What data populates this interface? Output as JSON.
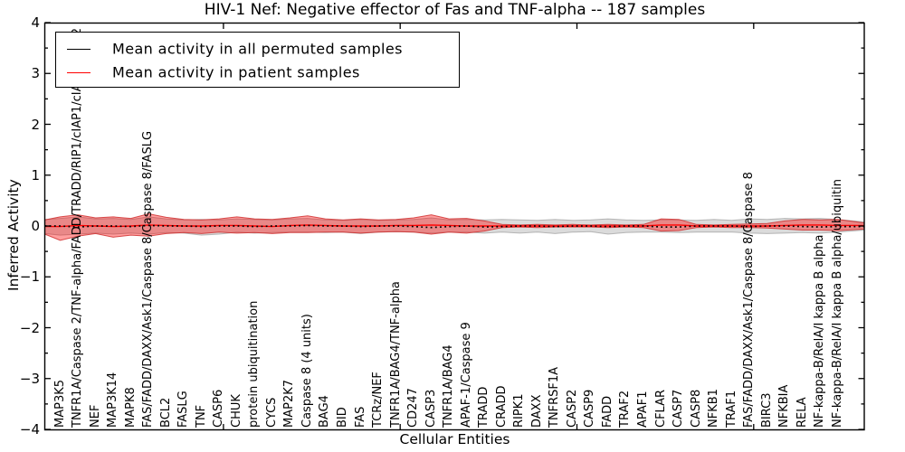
{
  "figure": {
    "title": "HIV-1 Nef: Negative effector of Fas and TNF-alpha -- 187 samples",
    "xlabel": "Cellular Entities",
    "ylabel": "Inferred Activity",
    "background_color": "#ffffff",
    "spine_color": "#000000"
  },
  "legend": {
    "entries": [
      {
        "label": "Mean activity in all permuted samples",
        "color": "#000000"
      },
      {
        "label": "Mean activity in patient samples",
        "color": "#ff0000"
      }
    ]
  },
  "chart_data": {
    "type": "line",
    "title": "HIV-1 Nef: Negative effector of Fas and TNF-alpha -- 187 samples",
    "xlabel": "Cellular Entities",
    "ylabel": "Inferred Activity",
    "ylim": [
      -4,
      4
    ],
    "yticks": [
      4,
      3,
      2,
      1,
      0,
      -1,
      -2,
      -3,
      -4
    ],
    "ytick_labels": [
      "4",
      "3",
      "2",
      "1",
      "0",
      "−1",
      "−2",
      "−3",
      "−4"
    ],
    "xticks": [
      10,
      20,
      30,
      40
    ],
    "grid": false,
    "legend_position": "upper left",
    "sample_count_in_title": 187,
    "categories": [
      "MAP3K5",
      "TNFR1A/Caspase 2/TNF-alpha/FADD/TRADD/RIP1/cIAP1/cIAP2/TRAF2",
      "NEF",
      "MAP3K14",
      "MAPK8",
      "FAS/FADD/DAXX/Ask1/Caspase 8/Caspase 8/FASLG",
      "BCL2",
      "FASLG",
      "TNF",
      "CASP6",
      "CHUK",
      "protein ubiquitination",
      "CYCS",
      "MAP2K7",
      "Caspase 8 (4 units)",
      "BAG4",
      "BID",
      "FAS",
      "TCRz/NEF",
      "TNFR1A/BAG4/TNF-alpha",
      "CD247",
      "CASP3",
      "TNFR1A/BAG4",
      "APAF-1/Caspase 9",
      "TRADD",
      "CRADD",
      "RIPK1",
      "DAXX",
      "TNFRSF1A",
      "CASP2",
      "CASP9",
      "FADD",
      "TRAF2",
      "APAF1",
      "CFLAR",
      "CASP7",
      "CASP8",
      "NFKB1",
      "TRAF1",
      "FAS/FADD/DAXX/Ask1/Caspase 8/Caspase 8",
      "BIRC3",
      "NFKBIA",
      "RELA",
      "NF-kappa-B/RelA/I kappa B alpha",
      "NF-kappa-B/RelA/I kappa B alpha/ubiquitin"
    ],
    "series": [
      {
        "name": "Mean activity in all permuted samples",
        "color": "#000000",
        "linestyle": "dotted",
        "values": [
          0,
          -0.02,
          0,
          0,
          -0.01,
          0.01,
          0,
          0,
          -0.01,
          0,
          0,
          -0.01,
          0,
          0,
          0.01,
          0,
          0,
          -0.01,
          0,
          0,
          -0.01,
          -0.03,
          -0.01,
          0,
          -0.02,
          -0.01,
          0,
          0,
          -0.01,
          0,
          0,
          -0.01,
          0,
          0,
          -0.02,
          -0.02,
          0,
          0,
          0,
          -0.01,
          0,
          0,
          -0.01,
          -0.02,
          -0.01
        ]
      },
      {
        "name": "Mean activity in patient samples",
        "color": "#ff0000",
        "linestyle": "solid",
        "values": [
          -0.01,
          0.01,
          0,
          -0.01,
          0,
          0.02,
          0.01,
          0,
          0,
          0.01,
          0.01,
          0,
          -0.01,
          0.01,
          0.02,
          0.01,
          0,
          0,
          0,
          0.01,
          0.01,
          0.02,
          0.01,
          0,
          0,
          0,
          0,
          0,
          0,
          0,
          0,
          0,
          0,
          0,
          0.02,
          0.02,
          0,
          0,
          0,
          0,
          0,
          0.01,
          0.02,
          0.02,
          0.01
        ]
      }
    ],
    "bands": [
      {
        "name": "Permuted samples range",
        "fill": "rgba(125,125,125,0.28)",
        "edge": "rgba(125,125,125,0.5)",
        "upper": [
          0.15,
          0.18,
          0.14,
          0.15,
          0.13,
          0.18,
          0.14,
          0.12,
          0.13,
          0.12,
          0.14,
          0.13,
          0.12,
          0.14,
          0.15,
          0.12,
          0.11,
          0.13,
          0.11,
          0.12,
          0.13,
          0.16,
          0.12,
          0.13,
          0.12,
          0.13,
          0.12,
          0.11,
          0.13,
          0.11,
          0.12,
          0.14,
          0.12,
          0.11,
          0.12,
          0.12,
          0.11,
          0.13,
          0.11,
          0.14,
          0.13,
          0.15,
          0.14,
          0.15,
          0.13
        ],
        "lower": [
          -0.18,
          -0.16,
          -0.14,
          -0.16,
          -0.14,
          -0.16,
          -0.13,
          -0.14,
          -0.18,
          -0.16,
          -0.12,
          -0.14,
          -0.13,
          -0.12,
          -0.12,
          -0.13,
          -0.12,
          -0.15,
          -0.12,
          -0.11,
          -0.12,
          -0.14,
          -0.12,
          -0.12,
          -0.14,
          -0.12,
          -0.14,
          -0.12,
          -0.15,
          -0.12,
          -0.11,
          -0.16,
          -0.13,
          -0.12,
          -0.12,
          -0.13,
          -0.12,
          -0.12,
          -0.12,
          -0.14,
          -0.15,
          -0.14,
          -0.13,
          -0.14,
          -0.12
        ],
        "left_edge": [
          0.13,
          -0.15
        ],
        "right_edge": [
          0.08,
          -0.08
        ]
      },
      {
        "name": "Patient samples range",
        "fill": "rgba(255,0,0,0.38)",
        "edge": "rgba(205,40,40,0.8)",
        "upper": [
          0.18,
          0.22,
          0.16,
          0.18,
          0.15,
          0.24,
          0.17,
          0.13,
          0.12,
          0.14,
          0.18,
          0.14,
          0.13,
          0.16,
          0.2,
          0.14,
          0.12,
          0.14,
          0.12,
          0.13,
          0.16,
          0.22,
          0.14,
          0.15,
          0.1,
          0.03,
          0.02,
          0.03,
          0.02,
          0.03,
          0.02,
          0.03,
          0.02,
          0.03,
          0.14,
          0.13,
          0.03,
          0.02,
          0.03,
          0.04,
          0.05,
          0.1,
          0.13,
          0.12,
          0.13
        ],
        "lower": [
          -0.28,
          -0.2,
          -0.15,
          -0.22,
          -0.18,
          -0.2,
          -0.15,
          -0.13,
          -0.15,
          -0.12,
          -0.14,
          -0.13,
          -0.15,
          -0.13,
          -0.13,
          -0.12,
          -0.12,
          -0.14,
          -0.12,
          -0.11,
          -0.12,
          -0.16,
          -0.12,
          -0.14,
          -0.1,
          -0.03,
          -0.02,
          -0.03,
          -0.02,
          -0.02,
          -0.02,
          -0.03,
          -0.02,
          -0.03,
          -0.1,
          -0.09,
          -0.03,
          -0.02,
          -0.03,
          -0.03,
          -0.04,
          -0.06,
          -0.08,
          -0.08,
          -0.09
        ],
        "left_edge": [
          0.12,
          -0.16
        ],
        "right_edge": [
          0.06,
          -0.06
        ]
      }
    ]
  }
}
